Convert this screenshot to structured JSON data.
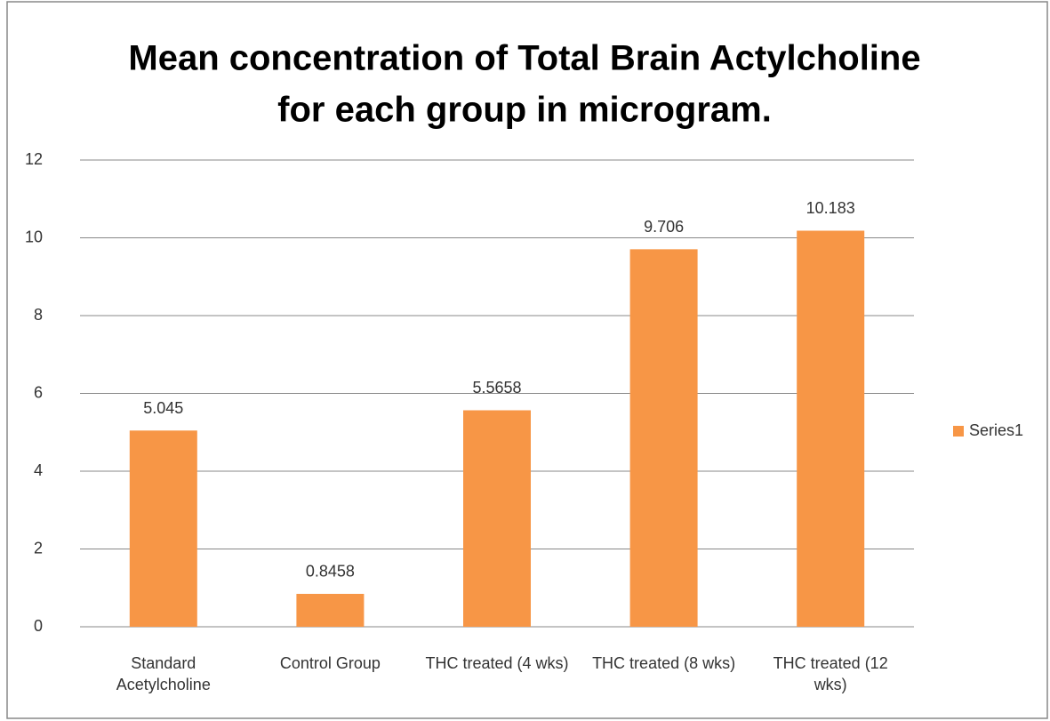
{
  "chart_data": {
    "type": "bar",
    "title": [
      "Mean concentration of Total Brain Actylcholine",
      "for each group in microgram."
    ],
    "categories": [
      "Standard Acetylcholine",
      "Control Group",
      "THC treated (4 wks)",
      "THC treated (8 wks)",
      "THC treated (12 wks)"
    ],
    "series": [
      {
        "name": "Series1",
        "color": "#f79646",
        "values": [
          5.045,
          0.8458,
          5.5658,
          9.706,
          10.183
        ]
      }
    ],
    "ylim": [
      0,
      12
    ],
    "yticks": [
      0,
      2,
      4,
      6,
      8,
      10,
      12
    ],
    "grid": true,
    "legend": "right"
  }
}
